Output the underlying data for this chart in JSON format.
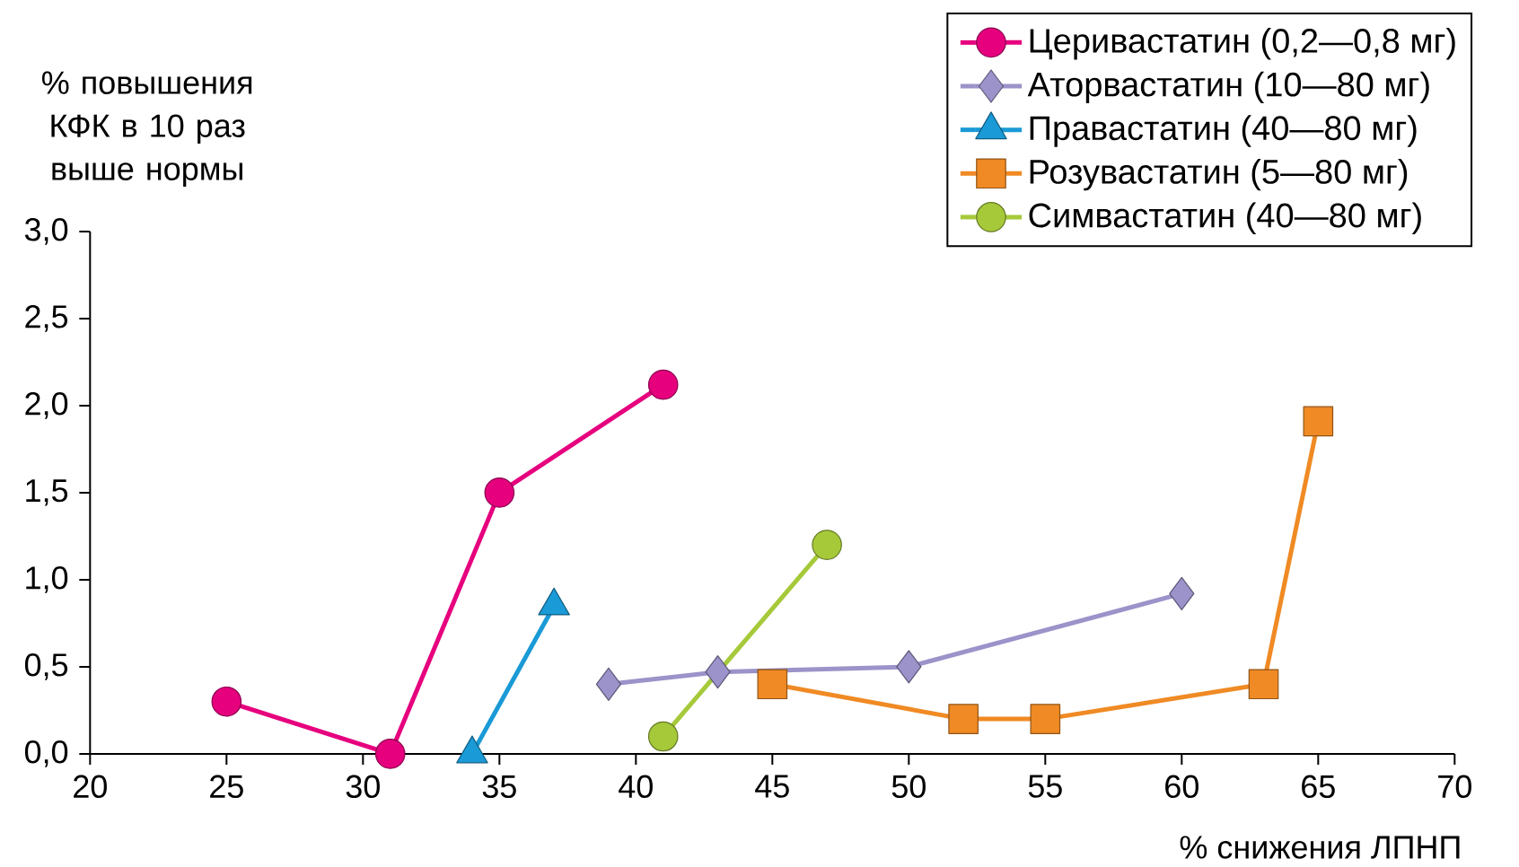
{
  "chart_data": {
    "type": "line",
    "xlabel": "% снижения ЛПНП",
    "ylabel": "% повышения КФК в 10 раз выше нормы",
    "xlim": [
      20,
      70
    ],
    "xticks": [
      20,
      25,
      30,
      35,
      40,
      45,
      50,
      55,
      60,
      65,
      70
    ],
    "ylim": [
      0,
      3
    ],
    "yticks": [
      {
        "value": 0,
        "label": "0,0"
      },
      {
        "value": 0.5,
        "label": "0,5"
      },
      {
        "value": 1,
        "label": "1,0"
      },
      {
        "value": 1.5,
        "label": "1,5"
      },
      {
        "value": 2,
        "label": "2,0"
      },
      {
        "value": 2.5,
        "label": "2,5"
      },
      {
        "value": 3,
        "label": "3,0"
      }
    ],
    "legend": "top right",
    "series": [
      {
        "name": "Церивастатин (0,2—0,8 мг)",
        "color": "#e6007e",
        "marker": "circle",
        "x": [
          25,
          31,
          35,
          41
        ],
        "values": [
          0.3,
          0.0,
          1.5,
          2.12
        ]
      },
      {
        "name": "Аторвастатин (10—80 мг)",
        "color": "#9b93c9",
        "marker": "diamond",
        "x": [
          39,
          43,
          50,
          60
        ],
        "values": [
          0.4,
          0.47,
          0.5,
          0.92
        ]
      },
      {
        "name": "Правастатин (40—80 мг)",
        "color": "#1a9ad6",
        "marker": "triangle",
        "x": [
          34,
          37
        ],
        "values": [
          0.0,
          0.85
        ]
      },
      {
        "name": "Розувастатин (5—80 мг)",
        "color": "#f08a24",
        "marker": "square",
        "x": [
          45,
          52,
          55,
          63,
          65
        ],
        "values": [
          0.4,
          0.2,
          0.2,
          0.4,
          1.91
        ]
      },
      {
        "name": "Симвастатин (40—80 мг)",
        "color": "#a6c93a",
        "marker": "circle",
        "x": [
          41,
          47
        ],
        "values": [
          0.1,
          1.2
        ]
      }
    ]
  }
}
